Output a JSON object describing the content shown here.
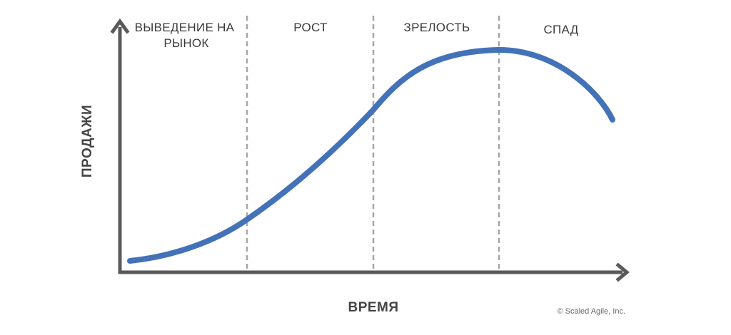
{
  "diagram": {
    "stages": [
      {
        "lines": [
          "ВЫВЕДЕНИЕ НА",
          "РЫНОК"
        ]
      },
      {
        "lines": [
          "РОСТ"
        ]
      },
      {
        "lines": [
          "ЗРЕЛОСТЬ"
        ]
      },
      {
        "lines": [
          "СПАД"
        ]
      }
    ],
    "x_axis_label": "ВРЕМЯ",
    "y_axis_label": "ПРОДАЖИ",
    "copyright": "© Scaled Agile, Inc.",
    "colors": {
      "curve": "#4472b8",
      "axis": "#5a5a5a",
      "divider": "#a6a6a6",
      "text": "#3a3a3a"
    }
  }
}
